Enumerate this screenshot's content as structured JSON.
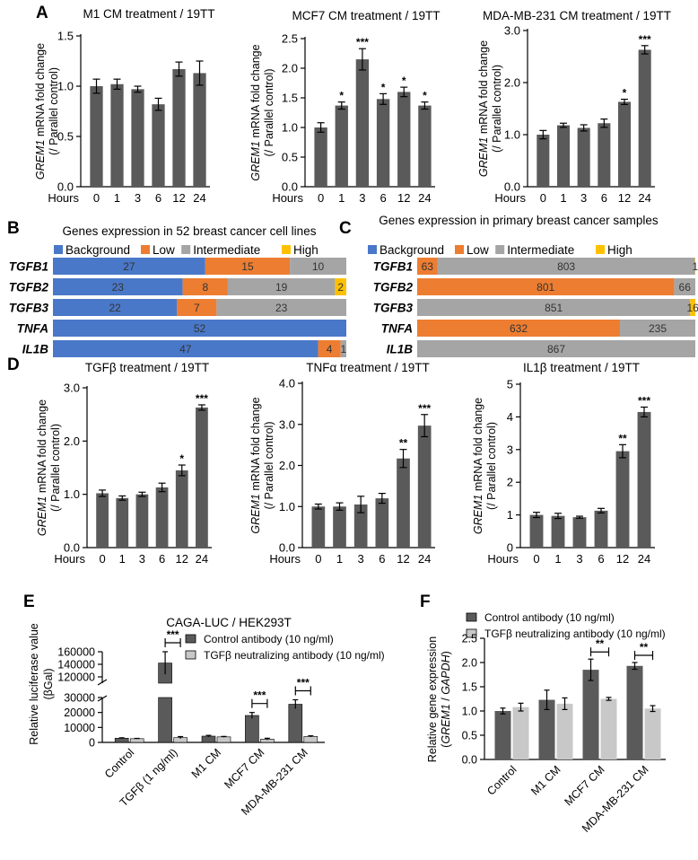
{
  "colors": {
    "bar": "#5a5a5a",
    "bar_light": "#c8c8c8",
    "background": "#4a78c8",
    "low": "#ed7d31",
    "intermediate": "#a5a5a5",
    "high": "#ffc000"
  },
  "panels": {
    "A": "A",
    "B": "B",
    "C": "C",
    "D": "D",
    "E": "E",
    "F": "F"
  },
  "chart_data": [
    {
      "id": "A1",
      "type": "bar",
      "title": "M1 CM treatment / 19TT",
      "ylabel_italic": "GREM1",
      "ylabel_rest": " mRNA fold change",
      "ylabel2": "(/ Parallel control)",
      "xlabel": "Hours",
      "categories": [
        "0",
        "1",
        "3",
        "6",
        "12",
        "24"
      ],
      "values": [
        1.0,
        1.02,
        0.97,
        0.82,
        1.17,
        1.13
      ],
      "errors": [
        0.07,
        0.05,
        0.03,
        0.06,
        0.07,
        0.12
      ],
      "sig": [
        "",
        "",
        "",
        "",
        "",
        ""
      ],
      "ylim": [
        0,
        1.5
      ],
      "yticks": [
        "0.0",
        "0.5",
        "1.0",
        "1.5"
      ]
    },
    {
      "id": "A2",
      "type": "bar",
      "title": "MCF7 CM treatment / 19TT",
      "ylabel_italic": "GREM1",
      "ylabel_rest": " mRNA fold change",
      "ylabel2": "(/ Parallel control)",
      "xlabel": "Hours",
      "categories": [
        "0",
        "1",
        "3",
        "6",
        "12",
        "24"
      ],
      "values": [
        1.0,
        1.37,
        2.15,
        1.48,
        1.6,
        1.37
      ],
      "errors": [
        0.08,
        0.06,
        0.18,
        0.09,
        0.08,
        0.06
      ],
      "sig": [
        "",
        "*",
        "***",
        "*",
        "*",
        "*"
      ],
      "ylim": [
        0,
        2.5
      ],
      "yticks": [
        "0.0",
        "0.5",
        "1.0",
        "1.5",
        "2.0",
        "2.5"
      ]
    },
    {
      "id": "A3",
      "type": "bar",
      "title": "MDA-MB-231 CM treatment  / 19TT",
      "ylabel_italic": "GREM1",
      "ylabel_rest": " mRNA fold change",
      "ylabel2": "(/ Parallel control)",
      "xlabel": "Hours",
      "categories": [
        "0",
        "1",
        "3",
        "6",
        "12",
        "24"
      ],
      "values": [
        1.0,
        1.18,
        1.13,
        1.22,
        1.63,
        2.63
      ],
      "errors": [
        0.08,
        0.04,
        0.06,
        0.08,
        0.05,
        0.08
      ],
      "sig": [
        "",
        "",
        "",
        "",
        "*",
        "***"
      ],
      "ylim": [
        0,
        3.0
      ],
      "yticks": [
        "0.0",
        "1.0",
        "2.0",
        "3.0"
      ]
    },
    {
      "id": "B",
      "type": "bar",
      "stacked": true,
      "orientation": "horizontal",
      "title": "Genes expression in 52 breast cancer cell lines",
      "legend": [
        "Background",
        "Low",
        "Intermediate",
        "High"
      ],
      "categories": [
        "TGFB1",
        "TGFB2",
        "TGFB3",
        "TNFA",
        "IL1B"
      ],
      "series": [
        {
          "name": "Background",
          "values": [
            27,
            23,
            22,
            52,
            47
          ]
        },
        {
          "name": "Low",
          "values": [
            15,
            8,
            7,
            0,
            4
          ]
        },
        {
          "name": "Intermediate",
          "values": [
            10,
            19,
            23,
            0,
            1
          ]
        },
        {
          "name": "High",
          "values": [
            0,
            2,
            0,
            0,
            0
          ]
        }
      ],
      "total": 52
    },
    {
      "id": "C",
      "type": "bar",
      "stacked": true,
      "orientation": "horizontal",
      "title": "Genes expression in primary breast cancer samples",
      "legend": [
        "Background",
        "Low",
        "Intermediate",
        "High"
      ],
      "categories": [
        "TGFB1",
        "TGFB2",
        "TGFB3",
        "TNFA",
        "IL1B"
      ],
      "series": [
        {
          "name": "Background",
          "values": [
            0,
            0,
            0,
            0,
            0
          ]
        },
        {
          "name": "Low",
          "values": [
            63,
            801,
            0,
            632,
            0
          ]
        },
        {
          "name": "Intermediate",
          "values": [
            803,
            66,
            851,
            235,
            867
          ]
        },
        {
          "name": "High",
          "values": [
            1,
            0,
            16,
            0,
            0
          ]
        }
      ],
      "total": 867
    },
    {
      "id": "D1",
      "type": "bar",
      "title": "TGFβ treatment / 19TT",
      "ylabel_italic": "GREM1",
      "ylabel_rest": " mRNA fold change",
      "ylabel2": "(/ Parallel control)",
      "xlabel": "Hours",
      "categories": [
        "0",
        "1",
        "3",
        "6",
        "12",
        "24"
      ],
      "values": [
        1.02,
        0.93,
        1.0,
        1.13,
        1.45,
        2.63
      ],
      "errors": [
        0.06,
        0.04,
        0.04,
        0.08,
        0.1,
        0.05
      ],
      "sig": [
        "",
        "",
        "",
        "",
        "*",
        "***"
      ],
      "ylim": [
        0,
        3.0
      ],
      "yticks": [
        "0.0",
        "1.0",
        "2.0",
        "3.0"
      ]
    },
    {
      "id": "D2",
      "type": "bar",
      "title": "TNFα treatment / 19TT",
      "ylabel_italic": "GREM1",
      "ylabel_rest": " mRNA fold change",
      "ylabel2": "(/ Parallel control)",
      "xlabel": "Hours",
      "categories": [
        "0",
        "1",
        "3",
        "6",
        "12",
        "24"
      ],
      "values": [
        1.0,
        1.0,
        1.05,
        1.2,
        2.17,
        2.97
      ],
      "errors": [
        0.06,
        0.09,
        0.2,
        0.12,
        0.22,
        0.27
      ],
      "sig": [
        "",
        "",
        "",
        "",
        "**",
        "***"
      ],
      "ylim": [
        0,
        4.0
      ],
      "yticks": [
        "0.0",
        "1.0",
        "2.0",
        "3.0",
        "4.0"
      ]
    },
    {
      "id": "D3",
      "type": "bar",
      "title": "IL1β treatment / 19TT",
      "ylabel_italic": "GREM1",
      "ylabel_rest": " mRNA fold change",
      "ylabel2": "(/ Parallel control)",
      "xlabel": "Hours",
      "categories": [
        "0",
        "1",
        "3",
        "6",
        "12",
        "24"
      ],
      "values": [
        1.0,
        0.97,
        0.93,
        1.13,
        2.95,
        4.15
      ],
      "errors": [
        0.08,
        0.08,
        0.03,
        0.07,
        0.2,
        0.15
      ],
      "sig": [
        "",
        "",
        "",
        "",
        "**",
        "***"
      ],
      "ylim": [
        0,
        5
      ],
      "yticks": [
        "0",
        "1",
        "2",
        "3",
        "4",
        "5"
      ]
    },
    {
      "id": "E",
      "type": "bar",
      "title": "CAGA-LUC / HEK293T",
      "ylabel": "Relative luciferase value",
      "ylabel2": "(βGal)",
      "categories": [
        "Control",
        "TGFβ (1 ng/ml)",
        "M1 CM",
        "MCF7 CM",
        "MDA-MB-231 CM"
      ],
      "series": [
        {
          "name": "Control antibody (10 ng/ml)",
          "values": [
            2800,
            142000,
            4200,
            18000,
            25500
          ],
          "errors": [
            300,
            18000,
            500,
            2000,
            3000
          ]
        },
        {
          "name": "TGFβ neutralizing antibody (10 ng/ml)",
          "values": [
            2500,
            3200,
            3700,
            2200,
            4000
          ],
          "errors": [
            200,
            700,
            300,
            600,
            400
          ]
        }
      ],
      "sig": [
        "",
        "***",
        "",
        "***",
        "***"
      ],
      "axis_break": true,
      "ylim_lower": [
        0,
        30000
      ],
      "ylim_upper": [
        100000,
        160000
      ],
      "yticks_lower": [
        "0",
        "10000",
        "20000",
        "30000"
      ],
      "yticks_upper": [
        "120000",
        "140000",
        "160000"
      ]
    },
    {
      "id": "F",
      "type": "bar",
      "ylabel": "Relative gene expression",
      "ylabel2_pre": "(",
      "ylabel2_italic1": "GREM1",
      "ylabel2_mid": " / ",
      "ylabel2_italic2": "GAPDH",
      "ylabel2_post": ")",
      "categories": [
        "Control",
        "M1 CM",
        "MCF7 CM",
        "MDA-MB-231 CM"
      ],
      "series": [
        {
          "name": "Control antibody (10 ng/ml)",
          "values": [
            1.0,
            1.23,
            1.85,
            1.93
          ],
          "errors": [
            0.06,
            0.2,
            0.22,
            0.07
          ]
        },
        {
          "name": "TGFβ neutralizing antibody (10 ng/ml)",
          "values": [
            1.08,
            1.15,
            1.25,
            1.05
          ],
          "errors": [
            0.08,
            0.12,
            0.03,
            0.06
          ]
        }
      ],
      "sig": [
        "",
        "",
        "**",
        "**"
      ],
      "ylim": [
        0,
        2.5
      ],
      "yticks": [
        "0.0",
        "0.5",
        "1.0",
        "1.5",
        "2.0",
        "2.5"
      ]
    }
  ]
}
